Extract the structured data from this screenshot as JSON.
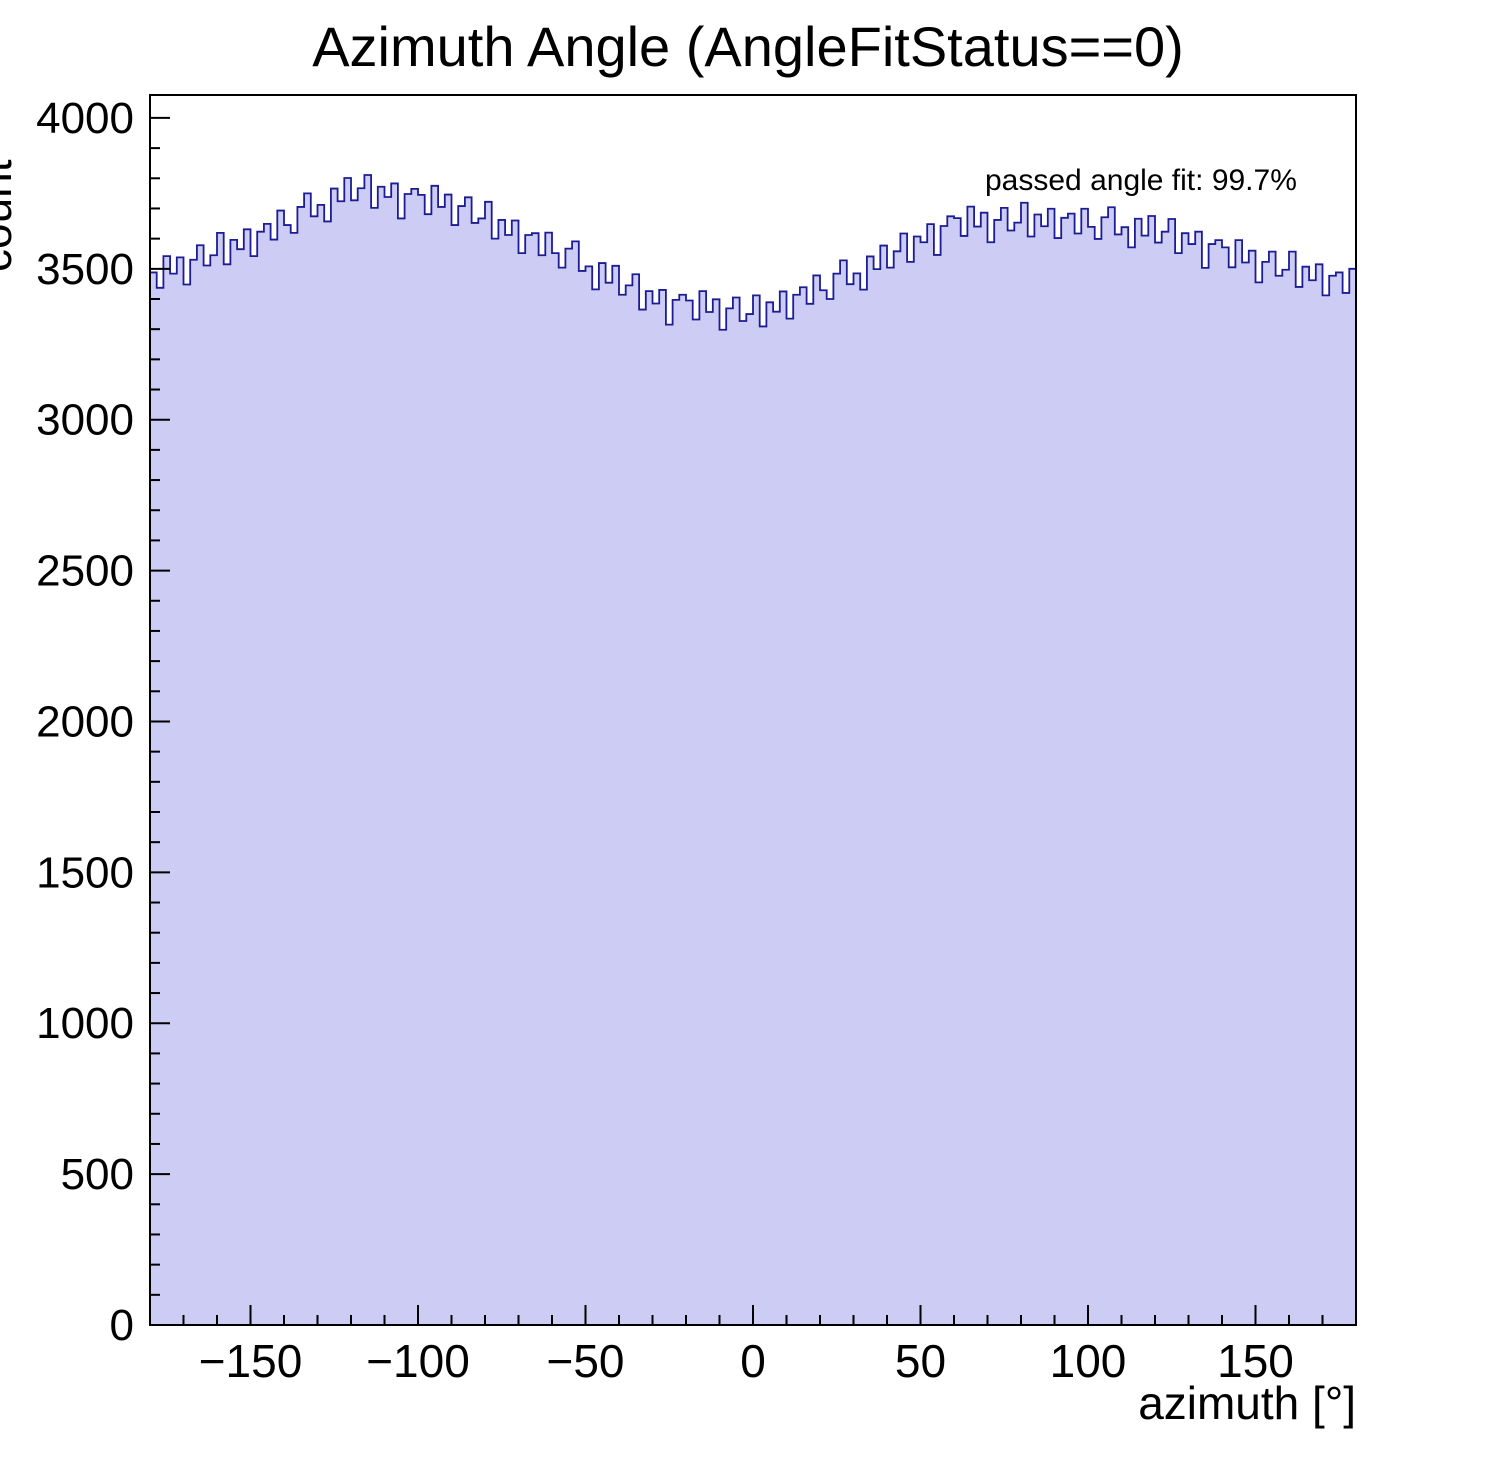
{
  "title": "Azimuth Angle (AngleFitStatus==0)",
  "annotation": "passed angle fit: 99.7%",
  "axes": {
    "xlabel": "azimuth [°]",
    "ylabel": "count"
  },
  "chart_data": {
    "type": "bar",
    "subtype": "histogram",
    "title": "Azimuth Angle (AngleFitStatus==0)",
    "xlabel": "azimuth [°]",
    "ylabel": "count",
    "annotation": "passed angle fit: 99.7%",
    "xlim": [
      -180,
      180
    ],
    "ylim": [
      0,
      4076
    ],
    "x_start": -180,
    "bin_width": 2,
    "grid": false,
    "legend": "none",
    "fill_color": "#cdccf4",
    "line_color": "#1c1c94",
    "frame_color": "#000000",
    "values": [
      3488,
      3437,
      3542,
      3484,
      3538,
      3448,
      3530,
      3578,
      3511,
      3545,
      3619,
      3515,
      3596,
      3565,
      3631,
      3542,
      3623,
      3649,
      3597,
      3693,
      3645,
      3619,
      3705,
      3750,
      3674,
      3712,
      3657,
      3766,
      3724,
      3801,
      3727,
      3767,
      3811,
      3702,
      3772,
      3738,
      3783,
      3667,
      3748,
      3765,
      3745,
      3681,
      3775,
      3705,
      3746,
      3645,
      3708,
      3737,
      3652,
      3667,
      3722,
      3600,
      3662,
      3612,
      3660,
      3552,
      3612,
      3618,
      3545,
      3620,
      3552,
      3504,
      3567,
      3591,
      3493,
      3508,
      3432,
      3519,
      3454,
      3510,
      3414,
      3445,
      3482,
      3365,
      3426,
      3385,
      3430,
      3315,
      3397,
      3414,
      3395,
      3332,
      3426,
      3357,
      3399,
      3298,
      3369,
      3405,
      3327,
      3350,
      3412,
      3309,
      3389,
      3358,
      3425,
      3335,
      3414,
      3439,
      3384,
      3478,
      3429,
      3400,
      3484,
      3528,
      3449,
      3485,
      3431,
      3541,
      3499,
      3577,
      3504,
      3558,
      3617,
      3523,
      3607,
      3588,
      3648,
      3546,
      3642,
      3674,
      3668,
      3609,
      3706,
      3640,
      3686,
      3588,
      3662,
      3702,
      3627,
      3653,
      3719,
      3607,
      3680,
      3641,
      3699,
      3602,
      3669,
      3683,
      3617,
      3699,
      3639,
      3599,
      3671,
      3704,
      3614,
      3638,
      3571,
      3666,
      3610,
      3675,
      3587,
      3623,
      3665,
      3552,
      3618,
      3582,
      3623,
      3503,
      3582,
      3595,
      3571,
      3505,
      3595,
      3521,
      3560,
      3455,
      3523,
      3557,
      3477,
      3497,
      3557,
      3440,
      3507,
      3462,
      3515,
      3412,
      3477,
      3488,
      3420,
      3500
    ],
    "x_ticks": {
      "major": [
        -150,
        -100,
        -50,
        0,
        50,
        100,
        150
      ],
      "labels": [
        "−150",
        "−100",
        "−50",
        "0",
        "50",
        "100",
        "150"
      ],
      "minor_step": 10
    },
    "y_ticks": {
      "major": [
        0,
        500,
        1000,
        1500,
        2000,
        2500,
        3000,
        3500,
        4000
      ],
      "labels": [
        "0",
        "500",
        "1000",
        "1500",
        "2000",
        "2500",
        "3000",
        "3500",
        "4000"
      ],
      "minor_step": 100
    }
  }
}
